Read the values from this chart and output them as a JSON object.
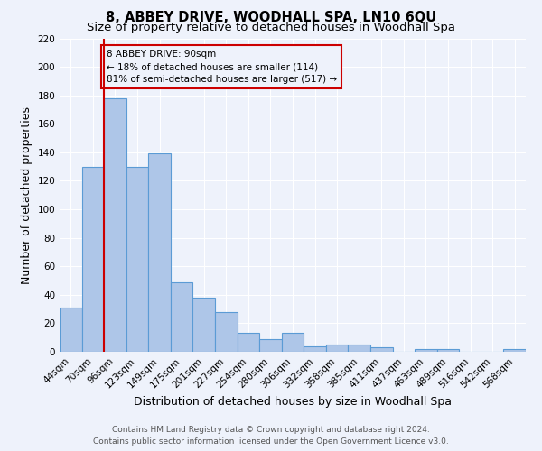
{
  "title": "8, ABBEY DRIVE, WOODHALL SPA, LN10 6QU",
  "subtitle": "Size of property relative to detached houses in Woodhall Spa",
  "xlabel": "Distribution of detached houses by size in Woodhall Spa",
  "ylabel": "Number of detached properties",
  "footer_line1": "Contains HM Land Registry data © Crown copyright and database right 2024.",
  "footer_line2": "Contains public sector information licensed under the Open Government Licence v3.0.",
  "bin_labels": [
    "44sqm",
    "70sqm",
    "96sqm",
    "123sqm",
    "149sqm",
    "175sqm",
    "201sqm",
    "227sqm",
    "254sqm",
    "280sqm",
    "306sqm",
    "332sqm",
    "358sqm",
    "385sqm",
    "411sqm",
    "437sqm",
    "463sqm",
    "489sqm",
    "516sqm",
    "542sqm",
    "568sqm"
  ],
  "bar_heights": [
    31,
    130,
    178,
    130,
    139,
    49,
    38,
    28,
    13,
    9,
    13,
    4,
    5,
    5,
    3,
    0,
    2,
    2,
    0,
    0,
    2
  ],
  "bar_color": "#aec6e8",
  "bar_edge_color": "#5b9bd5",
  "red_line_x": 1.5,
  "annotation_text": "8 ABBEY DRIVE: 90sqm\n← 18% of detached houses are smaller (114)\n81% of semi-detached houses are larger (517) →",
  "annotation_box_edge": "#cc0000",
  "ylim": [
    0,
    220
  ],
  "yticks": [
    0,
    20,
    40,
    60,
    80,
    100,
    120,
    140,
    160,
    180,
    200,
    220
  ],
  "background_color": "#eef2fb",
  "grid_color": "#ffffff",
  "title_fontsize": 10.5,
  "subtitle_fontsize": 9.5,
  "axis_label_fontsize": 9,
  "tick_fontsize": 7.5,
  "footer_fontsize": 6.5,
  "annotation_fontsize": 7.5
}
